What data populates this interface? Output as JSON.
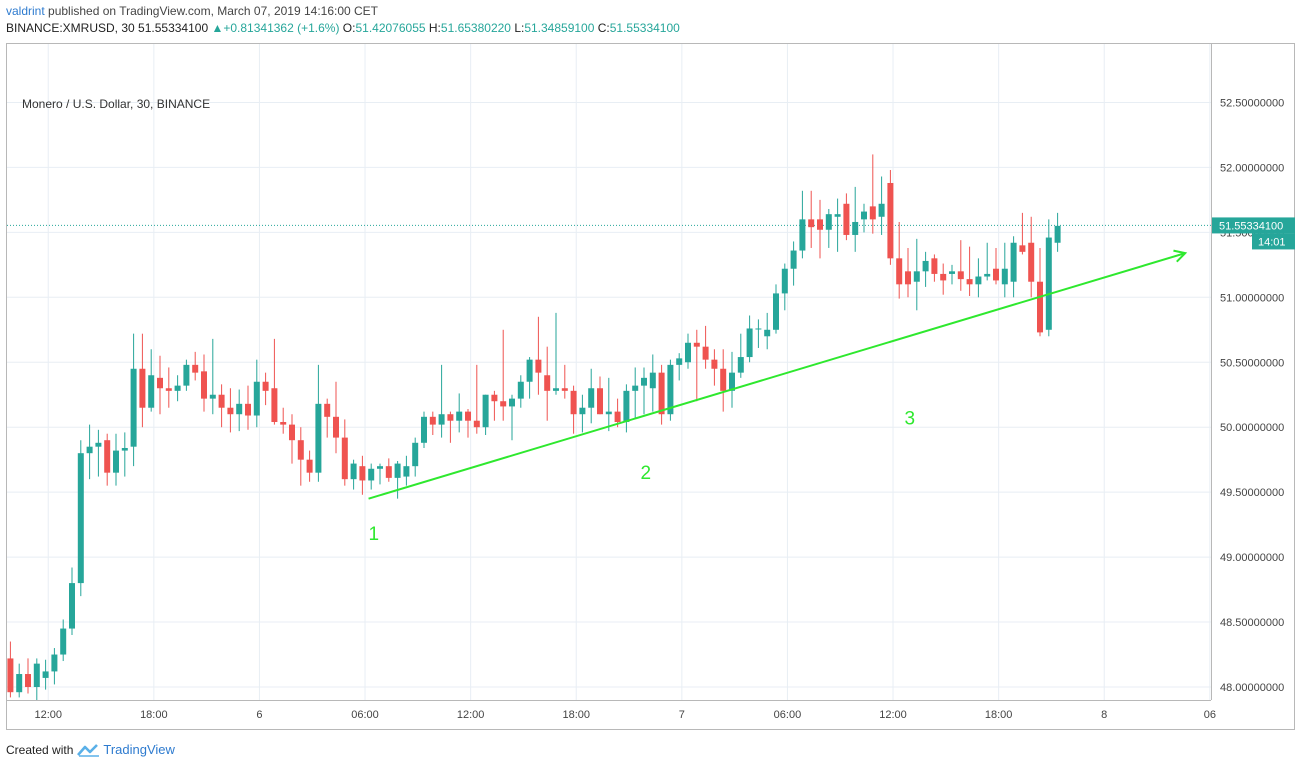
{
  "header": {
    "author": "valdrint",
    "published": "published on TradingView.com, March 07, 2019 14:16:00 CET",
    "symbol": "BINANCE:XMRUSD, 30",
    "last": "51.55334100",
    "change": "+0.81341362 (+1.6%)",
    "o_label": "O:",
    "o_value": "51.42076055",
    "h_label": "H:",
    "h_value": "51.65380220",
    "l_label": "L:",
    "l_value": "51.34859100",
    "c_label": "C:",
    "c_value": "51.55334100"
  },
  "title": "Monero / U.S. Dollar, 30, BINANCE",
  "footer": {
    "created_with": "Created with",
    "brand": "TradingView"
  },
  "colors": {
    "up": "#26a69a",
    "down": "#ef5350",
    "trend": "#2ee82e",
    "grid": "#e8eef4",
    "price_line": "#26a69a"
  },
  "chart_data": {
    "type": "candlestick",
    "interval": "30",
    "y_ticks": [
      "48.00000000",
      "48.50000000",
      "49.00000000",
      "49.50000000",
      "50.00000000",
      "50.50000000",
      "51.00000000",
      "51.50000000",
      "52.00000000",
      "52.50000000"
    ],
    "x_ticks": [
      {
        "label": "12:00",
        "t": 4.3
      },
      {
        "label": "18:00",
        "t": 16.3
      },
      {
        "label": "6",
        "t": 28.3
      },
      {
        "label": "06:00",
        "t": 40.3
      },
      {
        "label": "12:00",
        "t": 52.3
      },
      {
        "label": "18:00",
        "t": 64.3
      },
      {
        "label": "7",
        "t": 76.3
      },
      {
        "label": "06:00",
        "t": 88.3
      },
      {
        "label": "12:00",
        "t": 100.3
      },
      {
        "label": "18:00",
        "t": 112.3
      },
      {
        "label": "8",
        "t": 124.3
      },
      {
        "label": "06",
        "t": 136.3
      }
    ],
    "candles": [
      [
        48.22,
        48.35,
        47.92,
        47.96
      ],
      [
        47.96,
        48.18,
        47.92,
        48.1
      ],
      [
        48.1,
        48.22,
        47.95,
        48.0
      ],
      [
        48.0,
        48.22,
        47.9,
        48.18
      ],
      [
        48.07,
        48.21,
        47.98,
        48.12
      ],
      [
        48.12,
        48.3,
        48.02,
        48.25
      ],
      [
        48.25,
        48.52,
        48.2,
        48.45
      ],
      [
        48.45,
        48.92,
        48.4,
        48.8
      ],
      [
        48.8,
        49.9,
        48.7,
        49.8
      ],
      [
        49.8,
        50.02,
        49.6,
        49.85
      ],
      [
        49.85,
        49.98,
        49.62,
        49.88
      ],
      [
        49.9,
        49.95,
        49.55,
        49.65
      ],
      [
        49.65,
        49.95,
        49.55,
        49.82
      ],
      [
        49.82,
        49.96,
        49.62,
        49.84
      ],
      [
        49.85,
        50.72,
        49.7,
        50.45
      ],
      [
        50.45,
        50.72,
        50.0,
        50.15
      ],
      [
        50.15,
        50.6,
        50.12,
        50.4
      ],
      [
        50.38,
        50.55,
        50.1,
        50.3
      ],
      [
        50.3,
        50.46,
        50.15,
        50.28
      ],
      [
        50.28,
        50.4,
        50.2,
        50.32
      ],
      [
        50.32,
        50.52,
        50.28,
        50.48
      ],
      [
        50.48,
        50.58,
        50.36,
        50.42
      ],
      [
        50.43,
        50.56,
        50.12,
        50.22
      ],
      [
        50.22,
        50.68,
        50.1,
        50.25
      ],
      [
        50.25,
        50.33,
        50.0,
        50.15
      ],
      [
        50.15,
        50.3,
        49.96,
        50.1
      ],
      [
        50.1,
        50.29,
        49.97,
        50.18
      ],
      [
        50.18,
        50.32,
        49.98,
        50.09
      ],
      [
        50.09,
        50.52,
        50.0,
        50.35
      ],
      [
        50.35,
        50.42,
        50.17,
        50.28
      ],
      [
        50.3,
        50.68,
        50.02,
        50.04
      ],
      [
        50.04,
        50.15,
        49.95,
        50.02
      ],
      [
        50.02,
        50.1,
        49.72,
        49.9
      ],
      [
        49.9,
        50.0,
        49.55,
        49.75
      ],
      [
        49.75,
        49.82,
        49.58,
        49.65
      ],
      [
        49.65,
        50.48,
        49.58,
        50.18
      ],
      [
        50.18,
        50.22,
        49.92,
        50.08
      ],
      [
        50.08,
        50.35,
        49.8,
        49.92
      ],
      [
        49.92,
        50.06,
        49.55,
        49.6
      ],
      [
        49.6,
        49.75,
        49.52,
        49.72
      ],
      [
        49.7,
        49.78,
        49.48,
        49.59
      ],
      [
        49.59,
        49.72,
        49.52,
        49.68
      ],
      [
        49.68,
        49.72,
        49.56,
        49.7
      ],
      [
        49.7,
        49.76,
        49.58,
        49.61
      ],
      [
        49.61,
        49.74,
        49.45,
        49.72
      ],
      [
        49.62,
        49.78,
        49.55,
        49.7
      ],
      [
        49.7,
        49.92,
        49.62,
        49.88
      ],
      [
        49.88,
        50.12,
        49.84,
        50.08
      ],
      [
        50.08,
        50.12,
        49.94,
        50.02
      ],
      [
        50.02,
        50.48,
        49.92,
        50.1
      ],
      [
        50.1,
        50.12,
        49.88,
        50.05
      ],
      [
        50.05,
        50.26,
        49.96,
        50.12
      ],
      [
        50.12,
        50.14,
        49.92,
        50.05
      ],
      [
        50.05,
        50.48,
        49.95,
        50.0
      ],
      [
        50.0,
        50.25,
        49.94,
        50.25
      ],
      [
        50.25,
        50.28,
        50.05,
        50.2
      ],
      [
        50.2,
        50.75,
        50.05,
        50.16
      ],
      [
        50.16,
        50.25,
        49.9,
        50.22
      ],
      [
        50.22,
        50.4,
        50.15,
        50.35
      ],
      [
        50.35,
        50.54,
        50.22,
        50.52
      ],
      [
        50.52,
        50.85,
        50.25,
        50.42
      ],
      [
        50.4,
        50.62,
        50.05,
        50.28
      ],
      [
        50.28,
        50.88,
        50.25,
        50.3
      ],
      [
        50.3,
        50.48,
        50.22,
        50.28
      ],
      [
        50.28,
        50.32,
        49.95,
        50.1
      ],
      [
        50.1,
        50.25,
        49.96,
        50.15
      ],
      [
        50.15,
        50.45,
        50.03,
        50.3
      ],
      [
        50.3,
        50.39,
        50.1,
        50.1
      ],
      [
        50.1,
        50.38,
        49.97,
        50.12
      ],
      [
        50.12,
        50.22,
        50.0,
        50.04
      ],
      [
        50.04,
        50.33,
        49.96,
        50.28
      ],
      [
        50.28,
        50.46,
        50.07,
        50.32
      ],
      [
        50.32,
        50.46,
        50.1,
        50.38
      ],
      [
        50.3,
        50.56,
        50.12,
        50.42
      ],
      [
        50.42,
        50.48,
        50.02,
        50.1
      ],
      [
        50.1,
        50.52,
        50.05,
        50.48
      ],
      [
        50.48,
        50.57,
        50.36,
        50.53
      ],
      [
        50.5,
        50.72,
        50.45,
        50.65
      ],
      [
        50.65,
        50.75,
        50.2,
        50.62
      ],
      [
        50.62,
        50.78,
        50.45,
        50.52
      ],
      [
        50.52,
        50.6,
        50.32,
        50.45
      ],
      [
        50.45,
        50.6,
        50.12,
        50.28
      ],
      [
        50.28,
        50.58,
        50.15,
        50.42
      ],
      [
        50.42,
        50.72,
        50.38,
        50.54
      ],
      [
        50.54,
        50.86,
        50.5,
        50.76
      ],
      [
        50.76,
        50.83,
        50.61,
        50.76
      ],
      [
        50.7,
        50.88,
        50.6,
        50.75
      ],
      [
        50.75,
        51.1,
        50.72,
        51.03
      ],
      [
        51.03,
        51.26,
        50.9,
        51.22
      ],
      [
        51.22,
        51.43,
        51.09,
        51.36
      ],
      [
        51.36,
        51.82,
        51.3,
        51.6
      ],
      [
        51.6,
        51.82,
        51.38,
        51.54
      ],
      [
        51.6,
        51.75,
        51.3,
        51.52
      ],
      [
        51.52,
        51.68,
        51.38,
        51.64
      ],
      [
        51.62,
        51.76,
        51.35,
        51.64
      ],
      [
        51.72,
        51.8,
        51.44,
        51.48
      ],
      [
        51.48,
        51.85,
        51.35,
        51.58
      ],
      [
        51.6,
        51.72,
        51.5,
        51.66
      ],
      [
        51.7,
        52.1,
        51.49,
        51.6
      ],
      [
        51.62,
        51.93,
        51.48,
        51.72
      ],
      [
        51.88,
        51.98,
        51.25,
        51.3
      ],
      [
        51.3,
        51.58,
        50.99,
        51.1
      ],
      [
        51.2,
        51.38,
        51.0,
        51.1
      ],
      [
        51.12,
        51.45,
        50.9,
        51.2
      ],
      [
        51.2,
        51.35,
        51.08,
        51.28
      ],
      [
        51.3,
        51.33,
        51.12,
        51.18
      ],
      [
        51.18,
        51.26,
        51.02,
        51.13
      ],
      [
        51.18,
        51.25,
        51.1,
        51.2
      ],
      [
        51.2,
        51.44,
        51.05,
        51.14
      ],
      [
        51.14,
        51.39,
        51.01,
        51.1
      ],
      [
        51.1,
        51.3,
        51.0,
        51.16
      ],
      [
        51.16,
        51.42,
        51.13,
        51.18
      ],
      [
        51.22,
        51.38,
        51.1,
        51.13
      ],
      [
        51.1,
        51.42,
        51.0,
        51.22
      ],
      [
        51.12,
        51.47,
        51.0,
        51.42
      ],
      [
        51.4,
        51.65,
        51.33,
        51.35
      ],
      [
        51.42,
        51.62,
        51.0,
        51.12
      ],
      [
        51.12,
        51.38,
        50.7,
        50.73
      ],
      [
        50.75,
        51.6,
        50.7,
        51.46
      ],
      [
        51.42,
        51.65,
        51.35,
        51.55
      ]
    ],
    "trend_line": {
      "start": {
        "t": 40.7,
        "price": 49.45
      },
      "end": {
        "t": 133.5,
        "price": 51.34
      }
    },
    "annotations": [
      {
        "text": "1",
        "t": 41.3,
        "price": 49.13
      },
      {
        "text": "2",
        "t": 72.2,
        "price": 49.6
      },
      {
        "text": "3",
        "t": 102.2,
        "price": 50.02
      }
    ],
    "last_price": {
      "value": 51.553341,
      "label": "51.55334100",
      "countdown": "14:01"
    },
    "ylim": [
      47.9,
      52.95
    ],
    "grid": true
  }
}
